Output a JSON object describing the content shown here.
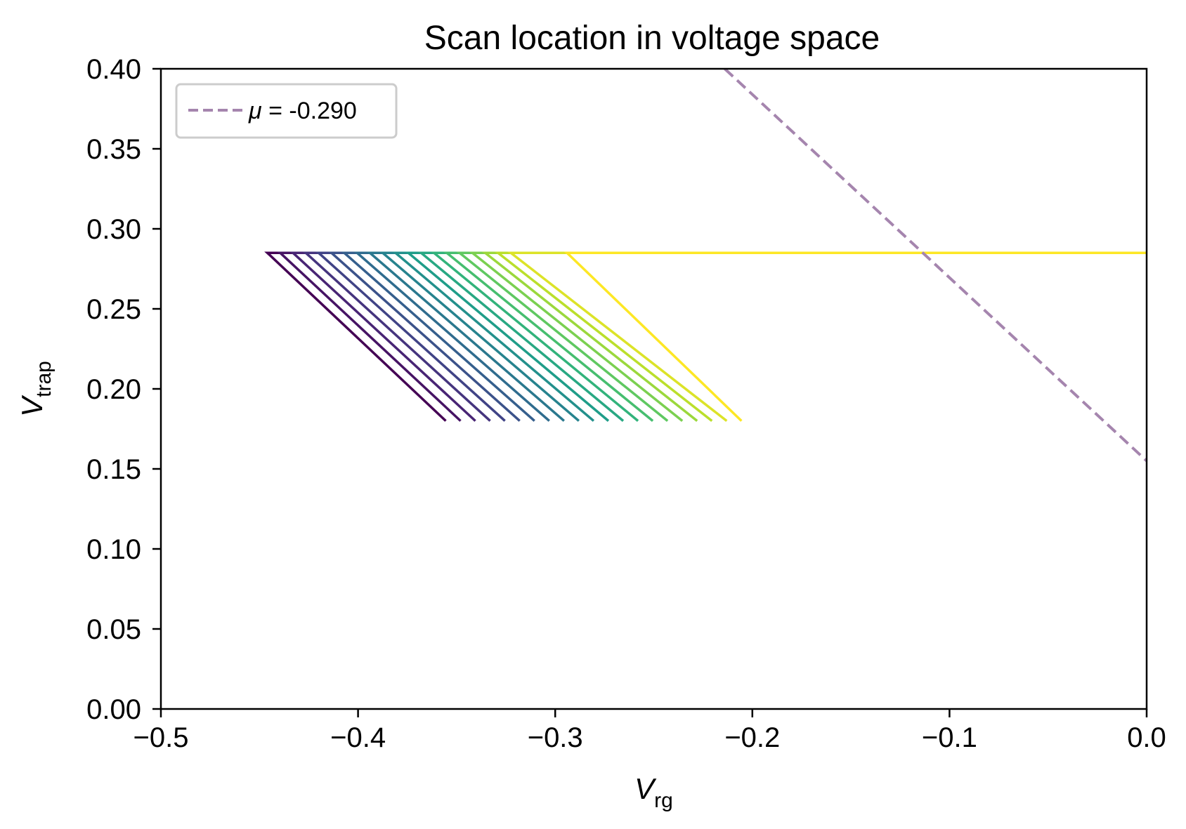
{
  "chart_data": {
    "type": "line",
    "title": "Scan location in voltage space",
    "xlabel": {
      "main": "V",
      "sub": "rg"
    },
    "ylabel": {
      "main": "V",
      "sub": "trap"
    },
    "xlim": [
      -0.5,
      0.0
    ],
    "ylim": [
      0.0,
      0.4
    ],
    "x_ticks": [
      -0.5,
      -0.4,
      -0.3,
      -0.2,
      -0.1,
      0.0
    ],
    "x_tick_labels": [
      "−0.5",
      "−0.4",
      "−0.3",
      "−0.2",
      "−0.1",
      "0.0"
    ],
    "y_ticks": [
      0.0,
      0.05,
      0.1,
      0.15,
      0.2,
      0.25,
      0.3,
      0.35,
      0.4
    ],
    "y_tick_labels": [
      "0.00",
      "0.05",
      "0.10",
      "0.15",
      "0.20",
      "0.25",
      "0.30",
      "0.35",
      "0.40"
    ],
    "legend": {
      "location": "upper-left",
      "entries": [
        {
          "label_symbol": "μ",
          "label_text": " = -0.290",
          "style": "dashed",
          "color": "#a585ae"
        }
      ]
    },
    "mu_line": {
      "name": "μ = -0.290",
      "color": "#a585ae",
      "x": [
        -0.214,
        0.0
      ],
      "y": [
        0.4,
        0.155
      ]
    },
    "scan_traces": {
      "count": 21,
      "colormap": "viridis",
      "y_top": 0.285,
      "y_bottom": 0.18,
      "x_top_start": [
        -0.446,
        -0.4395,
        -0.433,
        -0.4265,
        -0.42,
        -0.4135,
        -0.407,
        -0.4005,
        -0.394,
        -0.3875,
        -0.381,
        -0.3745,
        -0.368,
        -0.3615,
        -0.355,
        -0.3485,
        -0.342,
        -0.3355,
        -0.329,
        -0.3225,
        -0.294
      ],
      "x_bottom_end": [
        -0.3555,
        -0.348,
        -0.3405,
        -0.333,
        -0.3255,
        -0.318,
        -0.3105,
        -0.303,
        -0.2955,
        -0.288,
        -0.2805,
        -0.273,
        -0.2655,
        -0.258,
        -0.2505,
        -0.243,
        -0.2355,
        -0.228,
        -0.2205,
        -0.213,
        -0.2055
      ],
      "horizontal_x_end": 0.0
    }
  }
}
